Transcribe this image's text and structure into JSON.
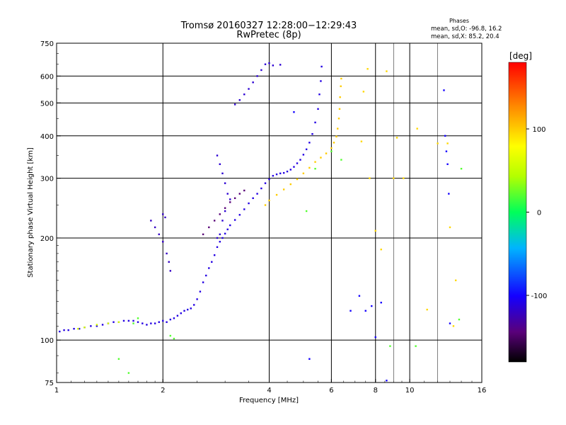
{
  "chart_data": {
    "type": "scatter",
    "title": "Tromsø 20160327 12:28:00−12:29:43",
    "subtitle": "RwPretec (8p)",
    "stats": {
      "heading": "Phases",
      "line1": "mean, sd,O: -96.8, 16.2",
      "line2": "mean, sd,X:  85.2, 20.4"
    },
    "xlabel": "Frequency [MHz]",
    "ylabel": "Stationary phase Virtual Height [km]",
    "xscale": "log",
    "yscale": "log",
    "xlim": [
      1,
      16
    ],
    "ylim": [
      75,
      750
    ],
    "x_ticks": [
      {
        "value": 1,
        "label": "1"
      },
      {
        "value": 2,
        "label": "2"
      },
      {
        "value": 4,
        "label": "4"
      },
      {
        "value": 6,
        "label": "6"
      },
      {
        "value": 8,
        "label": "8"
      },
      {
        "value": 10,
        "label": "10"
      },
      {
        "value": 16,
        "label": "16"
      }
    ],
    "x_major_grid": [
      2,
      4,
      6,
      8,
      10
    ],
    "x_minor_grid": [
      9,
      12
    ],
    "y_ticks": [
      {
        "value": 75,
        "label": "75"
      },
      {
        "value": 100,
        "label": "100"
      },
      {
        "value": 200,
        "label": "200"
      },
      {
        "value": 300,
        "label": "300"
      },
      {
        "value": 400,
        "label": "400"
      },
      {
        "value": 500,
        "label": "500"
      },
      {
        "value": 600,
        "label": "600"
      },
      {
        "value": 750,
        "label": "750"
      }
    ],
    "y_grid": [
      100,
      200,
      300,
      400,
      500,
      600
    ],
    "grid": true,
    "colorbar": {
      "label": "[deg]",
      "range": [
        -180,
        180
      ],
      "ticks": [
        {
          "value": 100,
          "label": "100"
        },
        {
          "value": 0,
          "label": "0"
        },
        {
          "value": -100,
          "label": "-100"
        }
      ]
    },
    "series": [
      {
        "points": [
          [
            1.02,
            106
          ],
          [
            1.05,
            107
          ],
          [
            1.08,
            107
          ],
          [
            1.12,
            108
          ],
          [
            1.16,
            108
          ],
          [
            1.2,
            109
          ],
          [
            1.25,
            110
          ],
          [
            1.3,
            110
          ],
          [
            1.35,
            111
          ],
          [
            1.4,
            112
          ],
          [
            1.45,
            113
          ],
          [
            1.5,
            113
          ],
          [
            1.55,
            114
          ],
          [
            1.6,
            114
          ],
          [
            1.65,
            114
          ],
          [
            1.7,
            113
          ],
          [
            1.75,
            112
          ],
          [
            1.8,
            111
          ],
          [
            1.85,
            112
          ],
          [
            1.9,
            112
          ],
          [
            1.95,
            113
          ],
          [
            2.0,
            114
          ],
          [
            2.05,
            113
          ],
          [
            2.1,
            115
          ],
          [
            2.15,
            116
          ],
          [
            2.2,
            118
          ],
          [
            2.25,
            120
          ],
          [
            2.3,
            122
          ],
          [
            2.35,
            123
          ],
          [
            2.4,
            124
          ],
          [
            2.45,
            127
          ],
          [
            2.5,
            132
          ],
          [
            2.55,
            139
          ],
          [
            2.6,
            148
          ],
          [
            2.65,
            155
          ],
          [
            2.7,
            163
          ],
          [
            2.75,
            170
          ],
          [
            2.8,
            178
          ],
          [
            2.85,
            188
          ],
          [
            2.9,
            195
          ],
          [
            2.95,
            200
          ],
          [
            3.0,
            206
          ],
          [
            3.05,
            212
          ],
          [
            3.1,
            218
          ],
          [
            3.2,
            226
          ],
          [
            3.3,
            234
          ],
          [
            3.4,
            243
          ],
          [
            3.5,
            253
          ],
          [
            3.6,
            262
          ],
          [
            3.7,
            270
          ],
          [
            3.8,
            280
          ],
          [
            3.9,
            290
          ],
          [
            4.0,
            298
          ],
          [
            4.1,
            305
          ],
          [
            4.2,
            308
          ],
          [
            4.3,
            310
          ],
          [
            4.4,
            311
          ],
          [
            4.5,
            314
          ],
          [
            4.6,
            318
          ],
          [
            4.7,
            324
          ],
          [
            4.8,
            332
          ],
          [
            4.9,
            340
          ],
          [
            5.0,
            352
          ],
          [
            5.1,
            365
          ],
          [
            5.2,
            382
          ],
          [
            5.3,
            405
          ],
          [
            5.4,
            438
          ],
          [
            5.5,
            480
          ],
          [
            5.55,
            530
          ],
          [
            5.6,
            580
          ],
          [
            5.63,
            640
          ]
        ],
        "phase": -110
      },
      {
        "points": [
          [
            3.9,
            250
          ],
          [
            4.0,
            258
          ],
          [
            4.2,
            268
          ],
          [
            4.4,
            278
          ],
          [
            4.6,
            288
          ],
          [
            4.8,
            298
          ],
          [
            5.0,
            310
          ],
          [
            5.2,
            322
          ],
          [
            5.4,
            335
          ],
          [
            5.6,
            345
          ],
          [
            5.8,
            355
          ],
          [
            6.0,
            368
          ],
          [
            6.1,
            382
          ],
          [
            6.2,
            398
          ],
          [
            6.25,
            420
          ],
          [
            6.3,
            450
          ],
          [
            6.33,
            480
          ],
          [
            6.35,
            520
          ],
          [
            6.38,
            560
          ],
          [
            6.4,
            590
          ]
        ],
        "phase": 100
      },
      {
        "points": [
          [
            2.6,
            205
          ],
          [
            2.7,
            215
          ],
          [
            2.8,
            225
          ],
          [
            2.9,
            235
          ],
          [
            3.0,
            245
          ],
          [
            3.1,
            255
          ],
          [
            3.2,
            262
          ],
          [
            3.3,
            270
          ],
          [
            3.4,
            276
          ]
        ],
        "phase": -145
      },
      {
        "points": [
          [
            2.85,
            350
          ],
          [
            2.9,
            330
          ],
          [
            2.95,
            310
          ],
          [
            3.0,
            290
          ],
          [
            3.05,
            270
          ],
          [
            3.1,
            260
          ],
          [
            3.0,
            240
          ],
          [
            2.95,
            225
          ],
          [
            2.9,
            205
          ],
          [
            2.85,
            200
          ]
        ],
        "phase": -115
      },
      {
        "points": [
          [
            3.2,
            495
          ],
          [
            3.3,
            510
          ],
          [
            3.4,
            530
          ],
          [
            3.5,
            550
          ],
          [
            3.6,
            575
          ],
          [
            3.7,
            600
          ],
          [
            3.8,
            625
          ],
          [
            3.9,
            650
          ],
          [
            4.0,
            655
          ],
          [
            4.1,
            645
          ],
          [
            4.3,
            648
          ]
        ],
        "phase": -115
      },
      {
        "points": [
          [
            1.85,
            225
          ],
          [
            1.9,
            215
          ],
          [
            1.95,
            205
          ],
          [
            2.0,
            195
          ],
          [
            2.05,
            180
          ],
          [
            2.08,
            170
          ],
          [
            2.1,
            160
          ],
          [
            2.0,
            235
          ],
          [
            2.03,
            230
          ]
        ],
        "phase": -120
      },
      {
        "points": [
          [
            1.15,
            108
          ],
          [
            1.2,
            109
          ],
          [
            1.3,
            111
          ],
          [
            1.4,
            112
          ],
          [
            1.5,
            113
          ]
        ],
        "phase": 60
      },
      {
        "points": [
          [
            7.3,
            385
          ],
          [
            7.4,
            540
          ],
          [
            7.6,
            630
          ],
          [
            7.7,
            300
          ],
          [
            8.0,
            210
          ],
          [
            8.3,
            185
          ],
          [
            8.6,
            620
          ],
          [
            9.0,
            300
          ],
          [
            9.2,
            395
          ],
          [
            9.6,
            300
          ],
          [
            10.5,
            420
          ],
          [
            11.2,
            123
          ],
          [
            12.0,
            380
          ],
          [
            12.8,
            380
          ],
          [
            13.0,
            215
          ],
          [
            13.3,
            110
          ],
          [
            13.5,
            150
          ]
        ],
        "phase": 95
      },
      {
        "points": [
          [
            6.8,
            122
          ],
          [
            7.2,
            135
          ],
          [
            7.5,
            122
          ],
          [
            7.8,
            126
          ],
          [
            8.0,
            102
          ],
          [
            8.3,
            129
          ],
          [
            8.6,
            76
          ],
          [
            12.5,
            545
          ],
          [
            12.6,
            400
          ],
          [
            12.7,
            360
          ],
          [
            12.8,
            330
          ],
          [
            12.9,
            270
          ],
          [
            13.0,
            112
          ],
          [
            4.7,
            470
          ],
          [
            5.2,
            88
          ]
        ],
        "phase": -100
      },
      {
        "points": [
          [
            1.5,
            88
          ],
          [
            1.6,
            80
          ],
          [
            1.65,
            112
          ],
          [
            1.7,
            116
          ],
          [
            2.1,
            103
          ],
          [
            2.15,
            101
          ],
          [
            5.1,
            240
          ],
          [
            5.4,
            320
          ],
          [
            6.0,
            360
          ],
          [
            6.4,
            340
          ],
          [
            8.8,
            96
          ],
          [
            10.4,
            96
          ],
          [
            13.8,
            115
          ],
          [
            14.0,
            320
          ]
        ],
        "phase": 20
      }
    ]
  }
}
